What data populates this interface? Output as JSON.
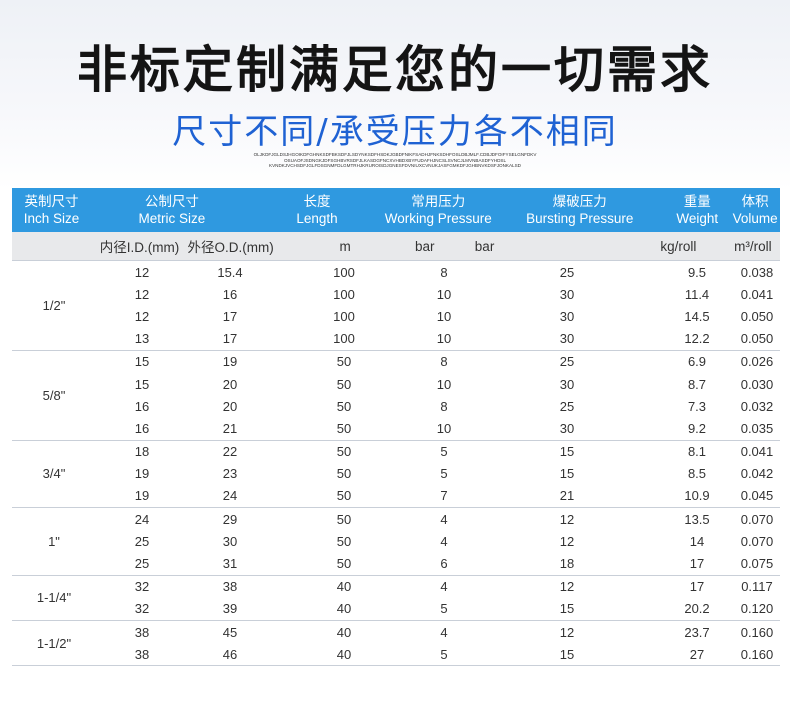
{
  "title": "非标定制满足您的一切需求",
  "subtitle": "尺寸不同/承受压力各不相同",
  "fine_print": [
    "OLJKDFJGLDSJHGOIKDFGHNKSDFBKSDFJLSDYNKSDFHSDKJGBDFNIKFSADHJFNKSDHFOSLDBJMLF.CDBJDFOIFYSELGNFDKV",
    "OSUAOFJSDNGKJDFSGHBVRSDFJLKASDGFNCXVHBDXBYFUDAFHJNCSLSVNCJLMVNBASDFYHDSL",
    "KVNDKJVCHSDFJGLFDSGNMFDLGMTRHJKRUROISDJGNESFDVNIUXCVNUKJASFGMKDFJGHBNVKDSFJONKALSD"
  ],
  "table": {
    "headers": [
      {
        "cn": "英制尺寸",
        "en": "Inch Size"
      },
      {
        "cn": "公制尺寸",
        "en": "Metric Size"
      },
      {
        "cn": "长度",
        "en": "Length"
      },
      {
        "cn": "常用压力",
        "en": "Working Pressure"
      },
      {
        "cn": "爆破压力",
        "en": "Bursting Pressure"
      },
      {
        "cn": "重量",
        "en": "Weight"
      },
      {
        "cn": "体积",
        "en": "Volume"
      }
    ],
    "units": [
      "内径I.D.(mm)",
      "外径O.D.(mm)",
      "m",
      "bar",
      "bar",
      "kg/roll",
      "m³/roll"
    ],
    "groups": [
      {
        "size": "1/2\"",
        "rows": [
          [
            "12",
            "15.4",
            "100",
            "8",
            "25",
            "9.5",
            "0.038"
          ],
          [
            "12",
            "16",
            "100",
            "10",
            "30",
            "11.4",
            "0.041"
          ],
          [
            "12",
            "17",
            "100",
            "10",
            "30",
            "14.5",
            "0.050"
          ],
          [
            "13",
            "17",
            "100",
            "10",
            "30",
            "12.2",
            "0.050"
          ]
        ]
      },
      {
        "size": "5/8\"",
        "rows": [
          [
            "15",
            "19",
            "50",
            "8",
            "25",
            "6.9",
            "0.026"
          ],
          [
            "15",
            "20",
            "50",
            "10",
            "30",
            "8.7",
            "0.030"
          ],
          [
            "16",
            "20",
            "50",
            "8",
            "25",
            "7.3",
            "0.032"
          ],
          [
            "16",
            "21",
            "50",
            "10",
            "30",
            "9.2",
            "0.035"
          ]
        ]
      },
      {
        "size": "3/4\"",
        "rows": [
          [
            "18",
            "22",
            "50",
            "5",
            "15",
            "8.1",
            "0.041"
          ],
          [
            "19",
            "23",
            "50",
            "5",
            "15",
            "8.5",
            "0.042"
          ],
          [
            "19",
            "24",
            "50",
            "7",
            "21",
            "10.9",
            "0.045"
          ]
        ]
      },
      {
        "size": "1\"",
        "rows": [
          [
            "24",
            "29",
            "50",
            "4",
            "12",
            "13.5",
            "0.070"
          ],
          [
            "25",
            "30",
            "50",
            "4",
            "12",
            "14",
            "0.070"
          ],
          [
            "25",
            "31",
            "50",
            "6",
            "18",
            "17",
            "0.075"
          ]
        ]
      },
      {
        "size": "1-1/4\"",
        "rows": [
          [
            "32",
            "38",
            "40",
            "4",
            "12",
            "17",
            "0.117"
          ],
          [
            "32",
            "39",
            "40",
            "5",
            "15",
            "20.2",
            "0.120"
          ]
        ]
      },
      {
        "size": "1-1/2\"",
        "rows": [
          [
            "38",
            "45",
            "40",
            "4",
            "12",
            "23.7",
            "0.160"
          ],
          [
            "38",
            "46",
            "40",
            "5",
            "15",
            "27",
            "0.160"
          ]
        ]
      }
    ]
  }
}
